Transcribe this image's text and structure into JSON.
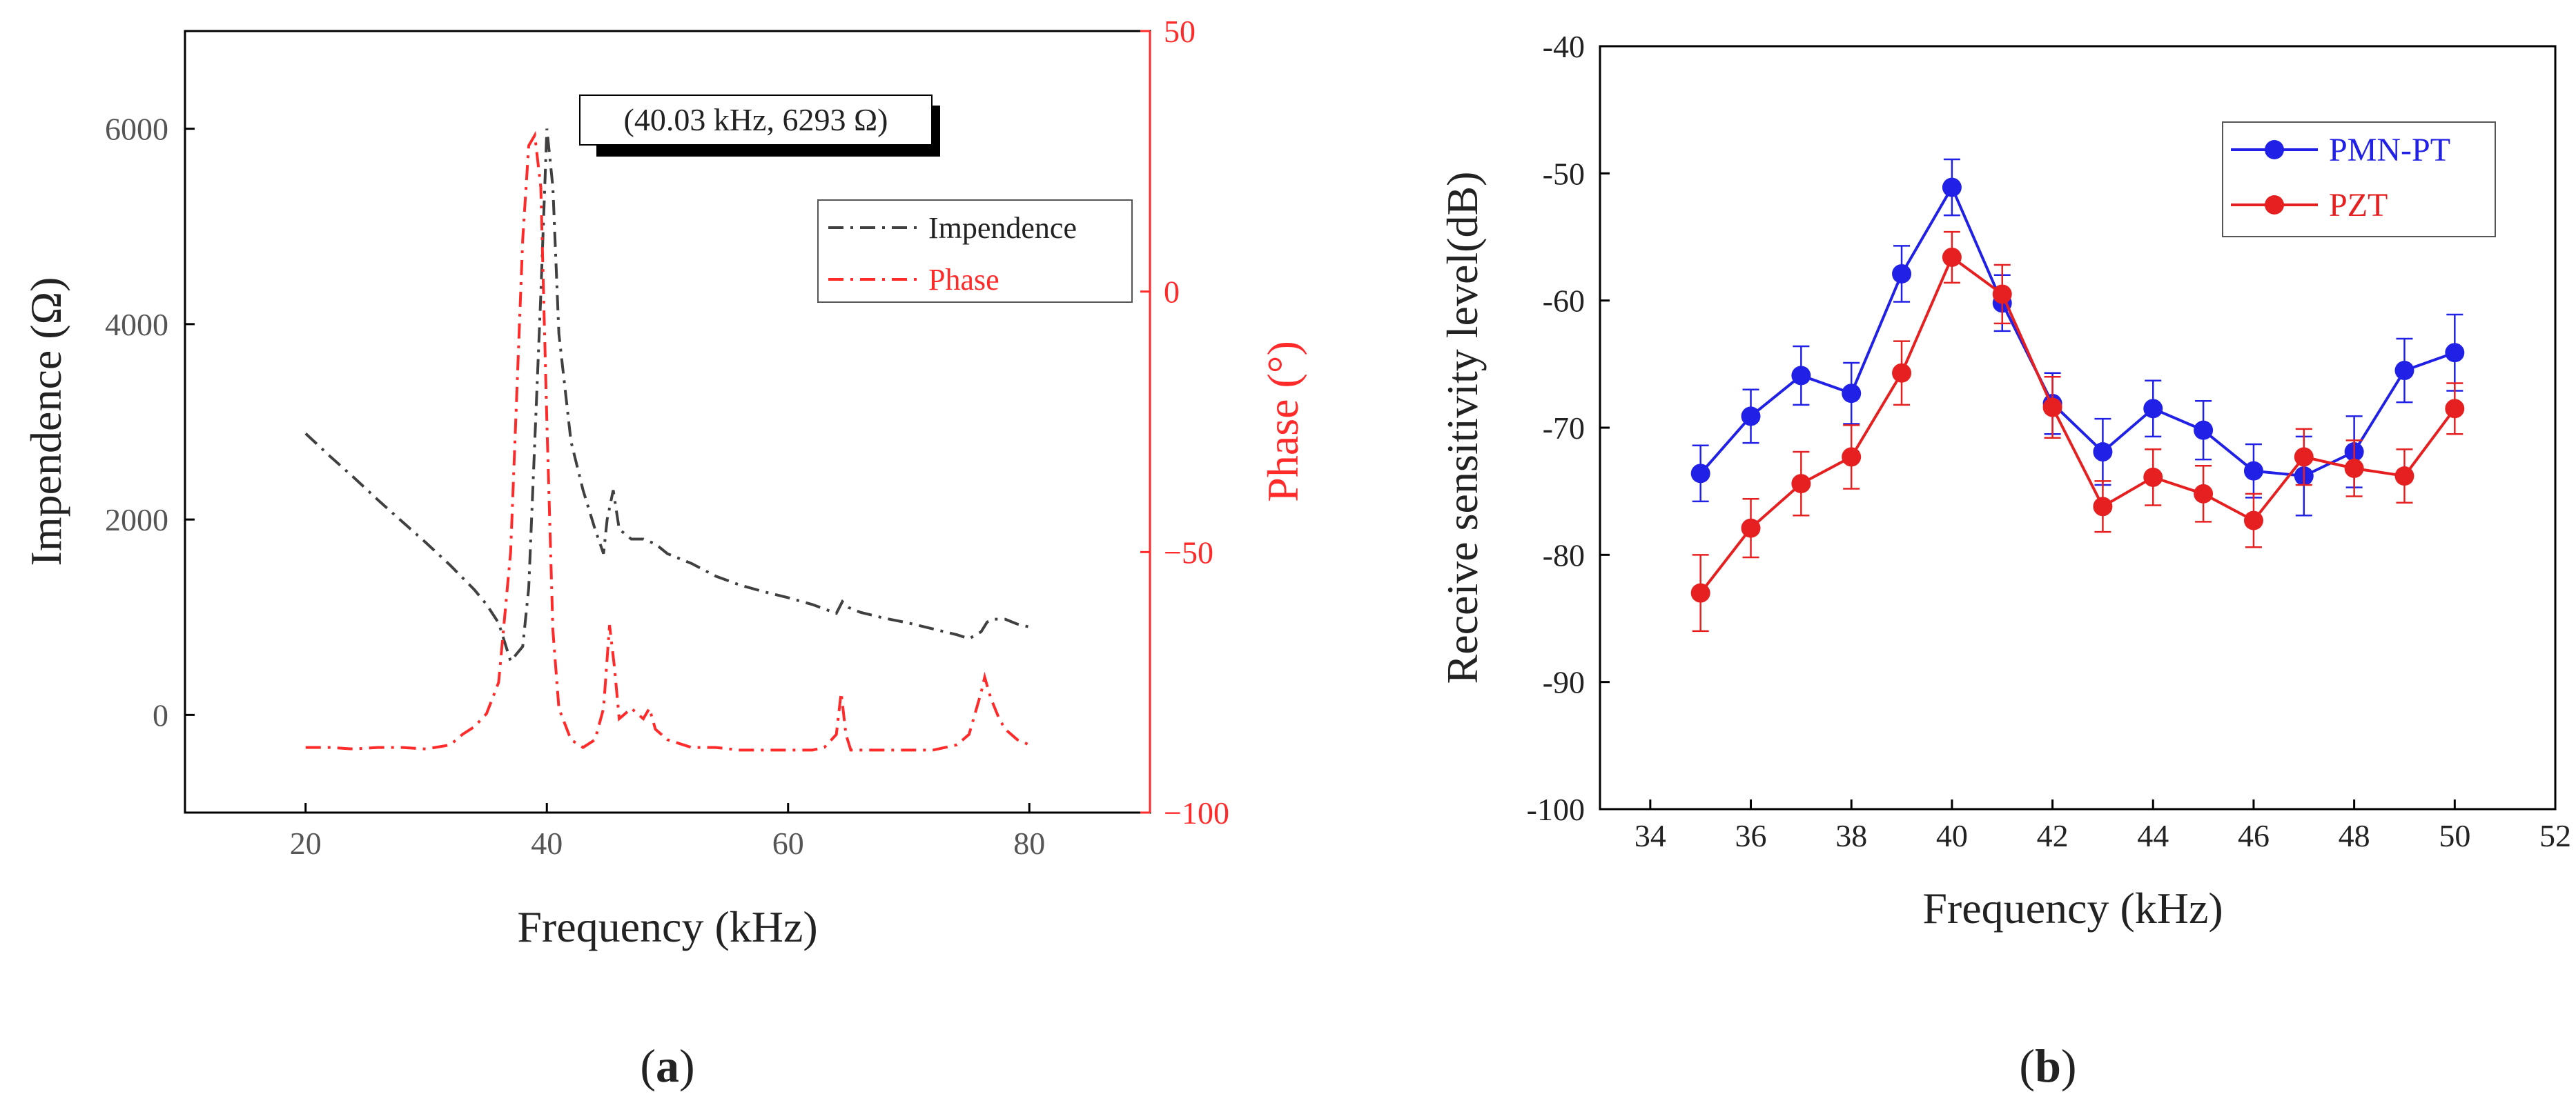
{
  "chart_data": [
    {
      "type": "line",
      "panel_label": "a",
      "xlabel": "Frequency (kHz)",
      "ylabel_left": "Impendence (Ω)",
      "ylabel_right": "Phase (°)",
      "xlim": [
        10,
        90
      ],
      "ylim_left": [
        -1000,
        7000
      ],
      "ylim_right": [
        -100,
        50
      ],
      "xticks": [
        20,
        40,
        60,
        80
      ],
      "yticks_left": [
        0,
        2000,
        4000,
        6000
      ],
      "yticks_right": [
        -100,
        -50,
        0,
        50
      ],
      "ytick_labels_right": [
        "−100",
        "−50",
        "0",
        "50"
      ],
      "annotation": "(40.03 kHz, 6293 Ω)",
      "colors": {
        "impedance": "#404040",
        "phase": "#ff2a2a"
      },
      "series": [
        {
          "name": "Impendence",
          "axis": "left",
          "x": [
            20,
            22,
            24,
            26,
            28,
            30,
            32,
            34,
            35,
            36,
            37,
            38,
            38.5,
            39,
            39.5,
            40,
            40.5,
            41,
            42,
            43,
            44,
            44.7,
            45,
            45.5,
            46,
            47,
            48,
            49,
            50,
            52,
            54,
            56,
            58,
            60,
            62,
            64,
            64.5,
            65,
            66,
            68,
            70,
            72,
            74,
            75,
            76,
            76.5,
            77,
            78,
            79,
            80
          ],
          "y": [
            2880,
            2650,
            2430,
            2200,
            1980,
            1760,
            1530,
            1280,
            1130,
            940,
            550,
            700,
            1300,
            2800,
            4300,
            6000,
            5400,
            3900,
            2800,
            2300,
            1900,
            1650,
            2000,
            2300,
            1900,
            1800,
            1800,
            1750,
            1650,
            1550,
            1420,
            1330,
            1260,
            1200,
            1130,
            1040,
            1160,
            1100,
            1050,
            990,
            940,
            880,
            820,
            780,
            850,
            950,
            980,
            980,
            930,
            900
          ]
        },
        {
          "name": "Phase",
          "axis": "right",
          "x": [
            20,
            22,
            24,
            26,
            28,
            30,
            32,
            33,
            34,
            35,
            36,
            37,
            37.5,
            38,
            38.5,
            39,
            39.5,
            40,
            40.5,
            41,
            42,
            43,
            44,
            44.7,
            45.2,
            45.6,
            46,
            47,
            48,
            48.5,
            49,
            50,
            52,
            54,
            56,
            58,
            60,
            62,
            63,
            64,
            64.4,
            64.8,
            65.2,
            66,
            68,
            70,
            72,
            74,
            75,
            75.5,
            76,
            76.3,
            76.8,
            77.5,
            78,
            79,
            80
          ],
          "y": [
            -87.5,
            -87.5,
            -87.8,
            -87.5,
            -87.5,
            -87.8,
            -87,
            -85,
            -83.5,
            -81,
            -75,
            -50,
            -20,
            10,
            28,
            30,
            20,
            -25,
            -65,
            -80,
            -86,
            -87.5,
            -86,
            -80,
            -64,
            -72,
            -82,
            -80,
            -82,
            -80,
            -84,
            -86,
            -87.5,
            -87.5,
            -88,
            -88,
            -88,
            -88,
            -87.5,
            -85,
            -77,
            -85,
            -88,
            -88,
            -88,
            -88,
            -88,
            -87,
            -85,
            -81,
            -77,
            -74,
            -78,
            -82,
            -84,
            -86,
            -87
          ]
        }
      ]
    },
    {
      "type": "line",
      "panel_label": "b",
      "xlabel": "Frequency (kHz)",
      "ylabel": "Receive sensitivity level(dB)",
      "xlim": [
        33,
        52
      ],
      "ylim": [
        -100,
        -40
      ],
      "xticks": [
        34,
        36,
        38,
        40,
        42,
        44,
        46,
        48,
        50,
        52
      ],
      "yticks": [
        -100,
        -90,
        -80,
        -70,
        -60,
        -50,
        -40
      ],
      "series": [
        {
          "name": "PMN-PT",
          "color": "#2020e6",
          "x": [
            35,
            36,
            37,
            38,
            39,
            40,
            41,
            42,
            43,
            44,
            45,
            46,
            47,
            48,
            49,
            50
          ],
          "y": [
            -73.6,
            -69.1,
            -65.9,
            -67.3,
            -57.9,
            -51.1,
            -60.2,
            -68.1,
            -71.9,
            -68.5,
            -70.2,
            -73.4,
            -73.8,
            -71.9,
            -65.5,
            -64.1
          ],
          "err": [
            2.2,
            2.1,
            2.3,
            2.4,
            2.2,
            2.2,
            2.2,
            2.4,
            2.6,
            2.2,
            2.3,
            2.1,
            3.1,
            2.8,
            2.5,
            3.0
          ]
        },
        {
          "name": "PZT",
          "color": "#e62020",
          "x": [
            35,
            36,
            37,
            38,
            39,
            40,
            41,
            42,
            43,
            44,
            45,
            46,
            47,
            48,
            49,
            50
          ],
          "y": [
            -83.0,
            -77.9,
            -74.4,
            -72.3,
            -65.7,
            -56.6,
            -59.5,
            -68.4,
            -76.2,
            -73.9,
            -75.2,
            -77.3,
            -72.3,
            -73.2,
            -73.8,
            -68.5
          ],
          "err": [
            3.0,
            2.3,
            2.5,
            2.5,
            2.5,
            2.0,
            2.3,
            2.4,
            2.0,
            2.2,
            2.2,
            2.1,
            2.2,
            2.2,
            2.1,
            2.0
          ]
        }
      ]
    }
  ]
}
